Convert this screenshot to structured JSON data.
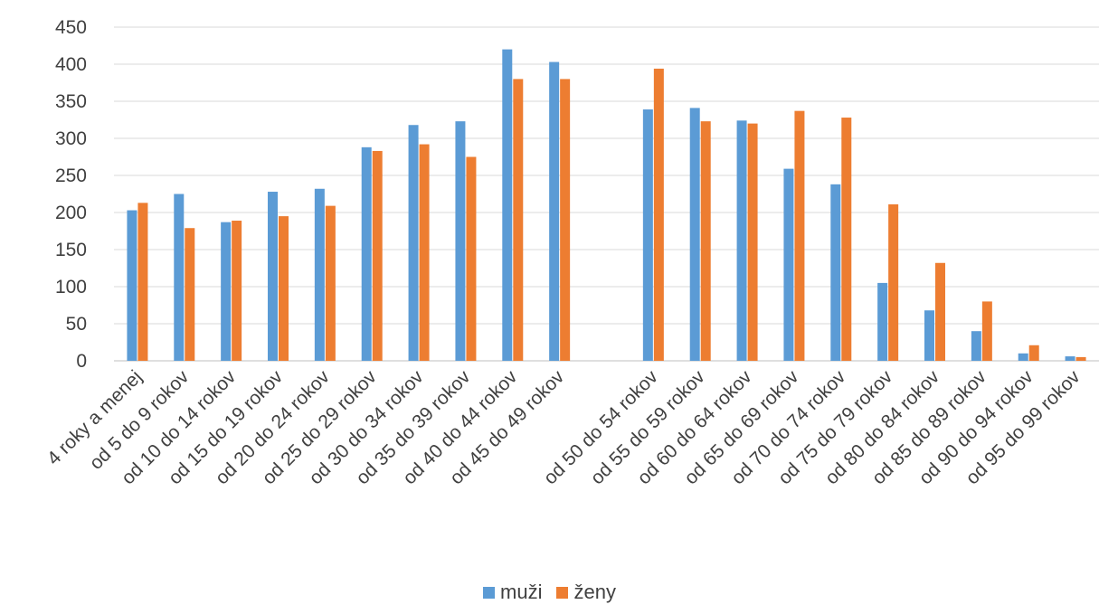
{
  "chart_data": {
    "type": "bar",
    "categories": [
      "4 roky a menej",
      "od 5 do 9 rokov",
      "od 10 do 14 rokov",
      "od 15 do 19 rokov",
      "od 20 do 24 rokov",
      "od 25 do 29 rokov",
      "od 30 do 34 rokov",
      "od 35 do 39 rokov",
      "od 40 do 44 rokov",
      "od 45 do 49 rokov",
      "",
      "od 50 do 54 rokov",
      "od 55 do 59 rokov",
      "od 60 do 64 rokov",
      "od 65 do 69 rokov",
      "od 70 do 74 rokov",
      "od 75 do 79 rokov",
      "od 80 do 84 rokov",
      "od 85 do 89 rokov",
      "od 90 do 94 rokov",
      "od 95 do 99 rokov"
    ],
    "series": [
      {
        "name": "muži",
        "color": "#5b9bd5",
        "values": [
          203,
          225,
          187,
          228,
          232,
          288,
          318,
          323,
          420,
          403,
          null,
          339,
          341,
          324,
          259,
          238,
          105,
          68,
          40,
          10,
          6
        ]
      },
      {
        "name": "ženy",
        "color": "#ed7d31",
        "values": [
          213,
          179,
          189,
          195,
          209,
          283,
          292,
          275,
          380,
          380,
          null,
          394,
          323,
          320,
          337,
          328,
          211,
          132,
          80,
          21,
          5
        ]
      }
    ],
    "yticks": [
      0,
      50,
      100,
      150,
      200,
      250,
      300,
      350,
      400,
      450
    ],
    "ylim": [
      0,
      450
    ],
    "grid": true,
    "legend_position": "bottom"
  }
}
